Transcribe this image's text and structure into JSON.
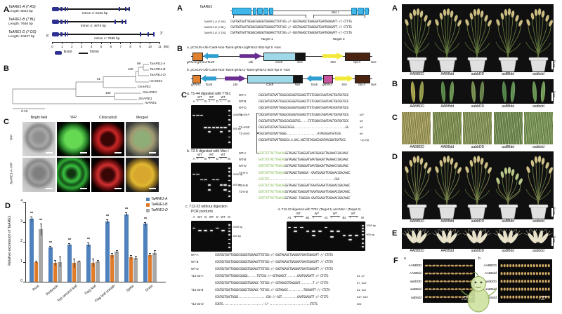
{
  "left": {
    "a": {
      "label": "A",
      "five_prime": "5'",
      "three_prime": "3'",
      "axis_ticks": [
        "0",
        "1",
        "2",
        "3",
        "4",
        "5",
        "6",
        "7",
        "8",
        "9",
        "10",
        "11"
      ],
      "axis_unit": "(kb)",
      "legend": {
        "exon": "Exon",
        "intron": "Intron"
      },
      "genes": [
        {
          "name": "TaARE1-A (7 AS)",
          "length": "Length: 8023 bp",
          "intron": "Intron 4: 5182 bp",
          "end_kb": 8.0,
          "right_exons": [
            6.8,
            7.5
          ]
        },
        {
          "name": "TaARE1-B (7 BL)",
          "length": "Length: 7656 bp",
          "intron": "Intron 4: 4676 bp",
          "end_kb": 7.65,
          "right_exons": [
            6.4,
            7.1
          ]
        },
        {
          "name": "TaARE1-D (7 DS)",
          "length": "Length: 10527 bp",
          "intron": "Intron 4: 7595 bp",
          "end_kb": 10.5,
          "right_exons": [
            9.0,
            9.8
          ]
        }
      ]
    },
    "b": {
      "label": "B",
      "taxa": [
        "TaARE1-A",
        "TaARE1-B",
        "TaARE1-D",
        "HvARE1",
        "OsARE1",
        "GmARE1",
        "ZmARE1",
        "AtARE1"
      ],
      "bootstraps": [
        "99",
        "100",
        "51",
        "100"
      ],
      "scale_label": "0.10"
    },
    "c": {
      "label": "C",
      "columns": [
        "Bright field",
        "YFP",
        "Chlorophyll",
        "Merged"
      ],
      "rows": [
        "YFP",
        "TaARE1-A-YFP"
      ]
    },
    "d": {
      "label": "D"
    }
  },
  "chart_data": {
    "type": "bar",
    "title": "",
    "ylabel": "Relative expression of TaARE1",
    "ylim": [
      0,
      4
    ],
    "yticks": [
      "0",
      "1",
      "2",
      "3",
      "4"
    ],
    "grid": false,
    "legend_position": "top-right",
    "categories": [
      "Root",
      "Peduncle",
      "Top second leaf",
      "Flag leaf",
      "Flag leaf sheath",
      "Spike",
      "Grain"
    ],
    "series": [
      {
        "name": "TaARE1-A",
        "color": "#4f81bd",
        "values": [
          3.15,
          1.72,
          1.85,
          1.85,
          3.02,
          3.38,
          2.9
        ],
        "errors": [
          0.12,
          0.08,
          0.07,
          0.1,
          0.12,
          0.08,
          0.1
        ],
        "sig": [
          "**",
          "**",
          "**",
          "**",
          "**",
          "**",
          "**"
        ]
      },
      {
        "name": "TaARE1-B",
        "color": "#e07b2a",
        "values": [
          1.0,
          0.95,
          0.93,
          0.95,
          1.32,
          1.22,
          1.35
        ],
        "errors": [
          0.05,
          0.15,
          0.22,
          0.2,
          0.12,
          0.1,
          0.1
        ],
        "sig": [
          "",
          "",
          "",
          "",
          "",
          "",
          ""
        ]
      },
      {
        "name": "TaARE1-D",
        "color": "#a8a8a8",
        "values": [
          2.62,
          1.0,
          1.02,
          1.02,
          1.5,
          1.2,
          1.45
        ],
        "errors": [
          0.3,
          0.28,
          0.05,
          0.08,
          0.07,
          0.1,
          0.12
        ],
        "sig": [
          "**",
          "",
          "",
          "",
          "",
          "",
          ""
        ]
      }
    ]
  },
  "middle": {
    "a": {
      "label": "A",
      "gene": "TaARE1",
      "enzyme_label": "Msc I",
      "target1": "Target 1",
      "target2": "Target 2",
      "rows": [
        {
          "name": "TaARE1-A (7 AS)",
          "seq": "CGATGGTGATTGGGGCGGGGGTGGGAGCTTGTCGG-//-GGGTAGAGCTGAGGGATGAATGGAGATT-//-CTCTG"
        },
        {
          "name": "TaARE1-B (7 BL)",
          "seq": "CGATGGTGACTGGGGCGGGGGTGGGAGCTTGTCGG-//-GGGTAGAGCTGAGGGATGAATGGAGATT-//-CTCTG"
        },
        {
          "name": "TaARE1-D (7 DS)",
          "seq": "CGATGGTGATTGGGGCGGGGGTGGGAGCTTGTCGG-//-GGGTAGAGCTGAGGGATGAATGGAGATT-//-CTCTG"
        }
      ]
    },
    "b": {
      "label": "B",
      "constructs": [
        {
          "title": "a. pCXUN-Ubi-Cas9-Nos-TaU6-gRNA1/gRNA2-35S-hpt II -Nos",
          "elements": [
            {
              "shape": "box",
              "color": "#e0812f",
              "label": "gRNA1/gRNA2",
              "w": 13
            },
            {
              "shape": "arrowL",
              "color": "#2f9fd0",
              "label": "TaU6",
              "w": 22
            },
            {
              "shape": "gap",
              "label": "",
              "w": 28
            },
            {
              "shape": "arrowR",
              "color": "#6a2d91",
              "label": "Ubi",
              "w": 32
            },
            {
              "shape": "box",
              "color": "#9fd8e8",
              "label": "Cas9",
              "w": 44
            },
            {
              "shape": "box",
              "color": "#141414",
              "label": "Nos",
              "w": 12
            },
            {
              "shape": "gap",
              "label": "",
              "w": 24
            },
            {
              "shape": "arrowR",
              "color": "#f2ea3a",
              "label": "35S",
              "w": 30
            },
            {
              "shape": "box",
              "color": "#4a2410",
              "label": "hpt II",
              "w": 34
            },
            {
              "shape": "end",
              "label": "Nos",
              "w": 0
            }
          ]
        },
        {
          "title": "b. pCXUN-Ubi-Cas9-Nos-TaU6-gRNA1-TaU6-gRNA2-35S-hpt II -Nos",
          "elements": [
            {
              "shape": "box",
              "color": "#e0812f",
              "label": "gRNA1",
              "w": 10
            },
            {
              "shape": "arrowL",
              "color": "#2f9fd0",
              "label": "TaU6",
              "w": 22
            },
            {
              "shape": "gap",
              "label": "",
              "w": 10
            },
            {
              "shape": "arrowR",
              "color": "#6a2d91",
              "label": "Ubi",
              "w": 30
            },
            {
              "shape": "box",
              "color": "#9fd8e8",
              "label": "Cas9",
              "w": 64
            },
            {
              "shape": "box",
              "color": "#141414",
              "label": "Nos",
              "w": 11
            },
            {
              "shape": "gap",
              "label": "",
              "w": 5
            },
            {
              "shape": "arrowL",
              "color": "#2f9fd0",
              "label": "TaU6",
              "w": 22
            },
            {
              "shape": "box",
              "color": "#c8539f",
              "label": "gRNA2",
              "w": 12
            },
            {
              "shape": "gap",
              "label": "",
              "w": 3
            },
            {
              "shape": "arrowR",
              "color": "#f2ea3a",
              "label": "35S",
              "w": 26
            },
            {
              "shape": "box",
              "color": "#4a2410",
              "label": "hpt II",
              "w": 20
            },
            {
              "shape": "end",
              "label": "Nos",
              "w": 0
            }
          ]
        }
      ]
    },
    "c": {
      "label": "C",
      "gel_a": {
        "title": "a. T1-44 digested with T7E1",
        "lane_row": [
          "A",
          "+",
          "-",
          "B",
          "+",
          "-",
          "D",
          "+",
          "-",
          "M"
        ],
        "wt": "WT",
        "size_labels": [
          "2000 bp",
          "500 bp"
        ]
      },
      "gel_b": {
        "title": "b. T2-5 digested with Msc I",
        "lane_row": [
          "A",
          "+",
          "-",
          "B",
          "+",
          "-",
          "D",
          "+",
          "-",
          "M"
        ],
        "wt": "WT",
        "size_labels": [
          "2000 bp",
          "500 bp"
        ]
      },
      "gel_c": {
        "title": "c. T12-23 without digestion",
        "subtitle": "PCR products",
        "lane_row": [
          "A",
          "WT",
          "B",
          "WT",
          "D",
          "WT",
          "M"
        ],
        "size_labels": [
          "2000 bp",
          "500 bp"
        ]
      },
      "gel_d": {
        "title": "d. T12-23 digested with T7E1 (Target 1) and Msc I (Target 2)",
        "lane_row": [
          "A1",
          "+",
          "-",
          "B1",
          "+",
          "-",
          "A2",
          "+",
          "-",
          "B2",
          "+",
          "-",
          "M"
        ],
        "wt": "WT",
        "size_labels": [
          "2000 bp",
          "500 bp"
        ]
      },
      "seq_a": {
        "rows": [
          {
            "label": "WT-A",
            "seq": "CGGCGATGGTGATTGGGGCGGGGGTGGGAGCTTGTCGGACCAGATAACTGATGATGCG",
            "note": ""
          },
          {
            "label": "WT-B",
            "seq": "CGGCGATGGTGACTGGGGCGGGGGTGGGAGCTTGTCGGACCAGATAACTGATGATGCG",
            "note": ""
          },
          {
            "label": "WT-D",
            "seq": "CGGCGATGGTGATTGGGGCGGGGGTGGGAGCTTGTCGGACCAGATAACGGATGATGCG",
            "note": ""
          },
          {
            "label": "T1-44-A",
            "seq": "CGGCGATGGTGATTGGGGCGGGGGTGGGAGCTTGTCGGACCAGATAACTGATGATGCG",
            "note": "WT"
          },
          {
            "label": "",
            "seq": "CGGCGATGGTGATTGGGGCGGGGGTGG.....TGTCGGACCAGATAACTGATGATGCG",
            "note": "d5"
          },
          {
            "label": "T1-44-B",
            "seq": "CGGCGATGGTGACTGGGGCGGGG.................................GG",
            "note": "d3"
          },
          {
            "label": "T1-44-D",
            "seq": "CGGCGATGGTGATTGGGG....................ATAACGGATGATGCG",
            "note": "d5"
          },
          {
            "label": "",
            "seq": "CGGCGATGGTGATTGGGGCA.A.GAC.AGCTGTCGGACCAGATAACGGATGATGCG",
            "note": "+1(-24)"
          }
        ]
      },
      "seq_b": {
        "rows": [
          {
            "label": "WT-A",
            "pre": "GGTCTGTTACTTAACAG",
            "seq": "GGTAGAGCTGAGGGATGAATGGAGATTAGAAACCGACAAGC"
          },
          {
            "label": "WT-B",
            "pre": "GGTCTGTTACTTAACAG",
            "seq": "GGTAGAGCTGAGGGATGAATGGAGATTAGAAACCGACAAGC"
          },
          {
            "label": "WT-D",
            "pre": "GGTCTGTTACTTAACAG",
            "seq": "GGTAGAGCTGAGGGATGAATGGAGATTAGAAACCGACAAGC"
          },
          {
            "label": "T2-5-A",
            "pre": "GGTCTGTTACTTAACAG",
            "seq": "GGTAGAGCTGAGGGA--GAATGGAGATTAGAAACCGACAAGC"
          },
          {
            "label": "",
            "pre": "GGTCTGT",
            "seq": "..........................................CAA"
          },
          {
            "label": "T2-5-B",
            "pre": "GGTCTGTTACTTAACAG",
            "seq": "GGTAGAGCTGAGGGATTGAATGGAGATTAGAAACCGACAAGC"
          },
          {
            "label": "T2-5-D",
            "pre": "GGTCTGTTACTTAACAG",
            "seq": "GGTAGAGCTGAGGGATTGAATGGAGATTAGAAACCGACAAGC"
          },
          {
            "label": "",
            "pre": "GGTCTGTTACTTAACAG",
            "seq": "GGTAGAGC.TGAGGGA-GAATGGAGATTAGAAACCGACAAGC"
          }
        ]
      },
      "seq_bottom": {
        "rows": [
          {
            "label": "WT-A",
            "seq": "CGATGGTGATTGGGGCGGGGGTGGGAGCTTGTCGG-//-GGGTAGAGCTGAGGGATGAATGGAGATT-//-CTCTG",
            "note": ""
          },
          {
            "label": "WT-B",
            "seq": "CGATGGTGACTGGGGCGGGGGTGGGAGCTTGTCGG-//-GGGTAGAGCTGAGGGATGAATGGAGATT-//-CTCTG",
            "note": ""
          },
          {
            "label": "WT-D",
            "seq": "CGATGGTGATTGGGGCGGGGGTGGGAGCTTGTCGG-//-GGGTAGAGCTGAGGGATGAATGGAGATT-//-CTCTG",
            "note": ""
          },
          {
            "label": "T12-23-A",
            "seq": "CGATGGTGATTGGGGCGGGGG......TGTCGG-//-GGTAGAGCT.......GAATGGAGATT-//-CTCTG",
            "note": "#1, #7"
          },
          {
            "label": "",
            "seq": "CGATGGTGATTGGGGCGGGGGTGGGAGC-TGTCGG-//-GGTAGAGCTGAGGGAT........T-//-CTCTG",
            "note": "#7, #10"
          },
          {
            "label": "T12-23-B",
            "seq": "CGATGGTGACTGGGGCGGGGCTGGGAGC-TGTCGG-//-GGTAGAGC..........TGGAGATT-//-CTCTG",
            "note": "#1, #11"
          },
          {
            "label": "",
            "seq": "CGATGGTGACTGGGG..................CGG-//-GGT..........GAATGGAGATT-//-CTCTG",
            "note": "#17, #13"
          },
          {
            "label": "T12-23-D",
            "seq": "CGATG..........................-//-..........................CTCTG",
            "note": "#61"
          }
        ]
      }
    }
  },
  "right": {
    "genotypes": [
      "AABBDD",
      "AABBdd",
      "aabbDD",
      "aaBBdd",
      "aabbdd"
    ],
    "panels": [
      {
        "label": "A",
        "type": "pots",
        "scale": "10 cm"
      },
      {
        "label": "B",
        "type": "leaves",
        "scale": "5 cm"
      },
      {
        "label": "C",
        "type": "field",
        "scale": ""
      },
      {
        "label": "D",
        "type": "pots2",
        "scale": "10 cm"
      },
      {
        "label": "E",
        "type": "spikes",
        "scale": "5 cm"
      },
      {
        "label": "F",
        "type": "grains",
        "subpanels": [
          "a",
          "b"
        ],
        "scale": "1 cm"
      }
    ]
  }
}
